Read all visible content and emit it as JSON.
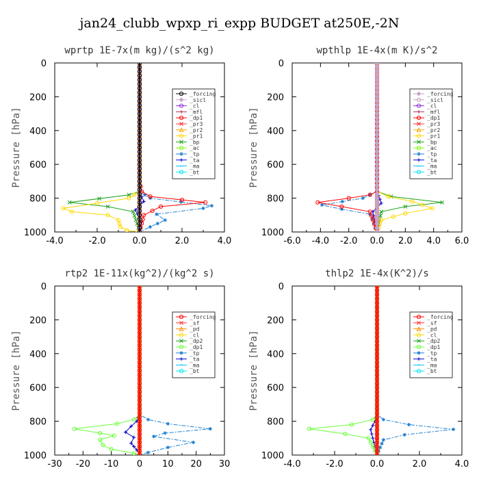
{
  "figure": {
    "title": "jan24_clubb_wpxp_ri_expp  BUDGET at250E,-2N"
  },
  "chart_data": [
    {
      "type": "line",
      "title": "wprtp  1E-7x(m kg)/(s^2 kg)",
      "ylabel": "Pressure [hPa]",
      "xlim": [
        -4,
        4
      ],
      "ylim": [
        1000,
        0
      ],
      "x_ticks": [
        "-4.0",
        "-2.0",
        "0.0",
        "2.0",
        "4.0"
      ],
      "x_tick_values": [
        -4,
        -2,
        0,
        2,
        4
      ],
      "y_ticks": [
        "0",
        "200",
        "400",
        "600",
        "800",
        "1000"
      ],
      "y_tick_values": [
        0,
        200,
        400,
        600,
        800,
        1000
      ],
      "legend_position": "top-right",
      "series": [
        {
          "name": "_forcing",
          "color": "#000000",
          "marker": "o",
          "x": [
            0,
            0,
            0,
            0,
            0,
            0,
            0,
            0,
            0,
            0,
            0,
            0
          ],
          "y": [
            0,
            100,
            200,
            300,
            400,
            500,
            600,
            700,
            800,
            850,
            900,
            1000
          ]
        },
        {
          "name": "_sicl",
          "color": "#c8a2c8",
          "marker": "d",
          "x": [
            0,
            0,
            0,
            0,
            0
          ],
          "y": [
            0,
            250,
            500,
            750,
            1000
          ]
        },
        {
          "name": "_cl",
          "color": "#8a2be2",
          "marker": "o",
          "x": [
            0,
            0,
            0,
            0,
            0
          ],
          "y": [
            0,
            250,
            500,
            750,
            1000
          ]
        },
        {
          "name": "_mfl",
          "color": "#b03060",
          "marker": "+",
          "x": [
            0,
            0,
            0,
            0,
            0
          ],
          "y": [
            0,
            250,
            500,
            750,
            1000
          ]
        },
        {
          "name": "_dp1",
          "color": "#ff0000",
          "marker": "o",
          "x": [
            0,
            0,
            0.1,
            0.5,
            2.0,
            3.1,
            1.0,
            0.2,
            0
          ],
          "y": [
            0,
            700,
            760,
            790,
            810,
            825,
            850,
            900,
            1000
          ]
        },
        {
          "name": "_pr3",
          "color": "#ff3030",
          "marker": "x",
          "x": [
            0,
            0,
            0
          ],
          "y": [
            0,
            500,
            1000
          ]
        },
        {
          "name": "_pr2",
          "color": "#ffa500",
          "marker": "^",
          "x": [
            0,
            0,
            0
          ],
          "y": [
            0,
            500,
            1000
          ]
        },
        {
          "name": "_pr1",
          "color": "#ffd700",
          "marker": "o",
          "x": [
            0,
            0,
            -0.5,
            -2.0,
            -3.6,
            -3.2,
            -1.5,
            -1.0,
            -0.9,
            -0.6,
            0
          ],
          "y": [
            0,
            760,
            800,
            830,
            860,
            880,
            900,
            930,
            970,
            990,
            1000
          ]
        },
        {
          "name": "_bp",
          "color": "#1aa01a",
          "marker": "x",
          "x": [
            0,
            0,
            -0.5,
            -3.3,
            -1.5,
            -0.3,
            0
          ],
          "y": [
            0,
            760,
            780,
            825,
            850,
            880,
            1000
          ]
        },
        {
          "name": "_ac",
          "color": "#7cfc00",
          "marker": "o",
          "x": [
            0,
            0,
            0
          ],
          "y": [
            0,
            500,
            1000
          ]
        },
        {
          "name": "_tp",
          "color": "#1e7fd0",
          "marker": "*",
          "x": [
            0,
            0,
            0.5,
            3.4,
            3.0,
            0.8,
            1.2,
            0.5,
            0
          ],
          "y": [
            0,
            760,
            800,
            845,
            860,
            895,
            930,
            970,
            1000
          ]
        },
        {
          "name": "_ta",
          "color": "#0000cd",
          "marker": "+",
          "x": [
            0,
            0,
            0.2,
            -0.2,
            0.1,
            0
          ],
          "y": [
            0,
            760,
            820,
            870,
            940,
            1000
          ]
        },
        {
          "name": "_ma",
          "color": "#00bfff",
          "marker": "-",
          "x": [
            0,
            0,
            0
          ],
          "y": [
            0,
            500,
            1000
          ]
        },
        {
          "name": "_bt",
          "color": "#00e5ee",
          "marker": "o",
          "x": [
            0,
            0,
            0
          ],
          "y": [
            0,
            500,
            1000
          ]
        }
      ]
    },
    {
      "type": "line",
      "title": "wpthlp  1E-4x(m K)/s^2",
      "ylabel": "Pressure [hPa]",
      "xlim": [
        -6,
        6
      ],
      "ylim": [
        1000,
        0
      ],
      "x_ticks": [
        "-6.0",
        "-4.0",
        "-2.0",
        "0.0",
        "2.0",
        "4.0",
        "6.0"
      ],
      "x_tick_values": [
        -6,
        -4,
        -2,
        0,
        2,
        4,
        6
      ],
      "y_ticks": [
        "0",
        "200",
        "400",
        "600",
        "800",
        "1000"
      ],
      "y_tick_values": [
        0,
        200,
        400,
        600,
        800,
        1000
      ],
      "legend_position": "top-right",
      "series": [
        {
          "name": "_forcing",
          "color": "#c8a2c8",
          "marker": "d",
          "x": [
            0,
            0,
            0,
            0,
            0
          ],
          "y": [
            0,
            250,
            500,
            750,
            1000
          ]
        },
        {
          "name": "_sicl",
          "color": "#c8a2c8",
          "marker": "o",
          "x": [
            0,
            0,
            0,
            0,
            0
          ],
          "y": [
            0,
            250,
            500,
            750,
            1000
          ]
        },
        {
          "name": "_cl",
          "color": "#8a2be2",
          "marker": "o",
          "x": [
            0,
            0,
            0,
            0,
            0
          ],
          "y": [
            0,
            250,
            500,
            750,
            1000
          ]
        },
        {
          "name": "_mfl",
          "color": "#b03060",
          "marker": "+",
          "x": [
            0,
            0,
            0,
            0,
            0
          ],
          "y": [
            0,
            250,
            500,
            750,
            1000
          ]
        },
        {
          "name": "_dp1",
          "color": "#ff0000",
          "marker": "o",
          "x": [
            0,
            0,
            -0.5,
            -2.0,
            -4.2,
            -2.5,
            -0.5,
            0
          ],
          "y": [
            0,
            760,
            780,
            800,
            825,
            850,
            880,
            1000
          ]
        },
        {
          "name": "_pr3",
          "color": "#ff3030",
          "marker": "x",
          "x": [
            0,
            0,
            0
          ],
          "y": [
            0,
            500,
            1000
          ]
        },
        {
          "name": "_pr2",
          "color": "#ffa500",
          "marker": "^",
          "x": [
            0,
            0,
            0
          ],
          "y": [
            0,
            500,
            1000
          ]
        },
        {
          "name": "_pr1",
          "color": "#ffd700",
          "marker": "o",
          "x": [
            0,
            0,
            0.8,
            2.5,
            3.9,
            2.0,
            0.3,
            0
          ],
          "y": [
            0,
            760,
            790,
            820,
            860,
            890,
            930,
            1000
          ]
        },
        {
          "name": "_bp",
          "color": "#1aa01a",
          "marker": "x",
          "x": [
            0,
            0,
            1.0,
            4.6,
            2.0,
            0.3,
            0
          ],
          "y": [
            0,
            760,
            790,
            825,
            850,
            880,
            1000
          ]
        },
        {
          "name": "_ac",
          "color": "#7cfc00",
          "marker": "o",
          "x": [
            0,
            0,
            0
          ],
          "y": [
            0,
            500,
            1000
          ]
        },
        {
          "name": "_tp",
          "color": "#1e7fd0",
          "marker": "*",
          "x": [
            0,
            0,
            -1.0,
            -3.9,
            -2.5,
            -0.5,
            -0.2,
            0
          ],
          "y": [
            0,
            760,
            800,
            840,
            865,
            895,
            950,
            1000
          ]
        },
        {
          "name": "_ta",
          "color": "#0000cd",
          "marker": "+",
          "x": [
            0,
            0,
            0.3,
            -0.3,
            0
          ],
          "y": [
            0,
            760,
            830,
            880,
            1000
          ]
        },
        {
          "name": "_ma",
          "color": "#00bfff",
          "marker": "-",
          "x": [
            0,
            0,
            0
          ],
          "y": [
            0,
            500,
            1000
          ]
        },
        {
          "name": "_bt",
          "color": "#00e5ee",
          "marker": "o",
          "x": [
            0,
            0,
            0
          ],
          "y": [
            0,
            500,
            1000
          ]
        }
      ]
    },
    {
      "type": "line",
      "title": "rtp2  1E-11x(kg^2)/(kg^2 s)",
      "ylabel": "Pressure [hPa]",
      "xlim": [
        -30,
        30
      ],
      "ylim": [
        1000,
        0
      ],
      "x_ticks": [
        "-30",
        "-20",
        "-10",
        "0",
        "10",
        "20",
        "30"
      ],
      "x_tick_values": [
        -30,
        -20,
        -10,
        0,
        10,
        20,
        30
      ],
      "y_ticks": [
        "0",
        "200",
        "400",
        "600",
        "800",
        "1000"
      ],
      "y_tick_values": [
        0,
        200,
        400,
        600,
        800,
        1000
      ],
      "legend_position": "top-right",
      "series": [
        {
          "name": "_forcing",
          "color": "#ff0000",
          "marker": "o",
          "x": [
            0,
            0,
            0,
            0,
            0,
            0,
            0,
            0,
            0,
            0,
            0,
            0
          ],
          "y": [
            0,
            100,
            200,
            300,
            400,
            500,
            600,
            700,
            800,
            850,
            900,
            1000
          ]
        },
        {
          "name": "_sf",
          "color": "#ff3030",
          "marker": "x",
          "x": [
            0,
            0,
            0
          ],
          "y": [
            0,
            500,
            1000
          ]
        },
        {
          "name": "_pd",
          "color": "#ff8c00",
          "marker": "^",
          "x": [
            0,
            0,
            0
          ],
          "y": [
            0,
            500,
            1000
          ]
        },
        {
          "name": "_cl",
          "color": "#ffd700",
          "marker": "o",
          "x": [
            0,
            0,
            0
          ],
          "y": [
            0,
            500,
            1000
          ]
        },
        {
          "name": "_dp2",
          "color": "#1aa01a",
          "marker": "x",
          "x": [
            0,
            0,
            0
          ],
          "y": [
            0,
            500,
            1000
          ]
        },
        {
          "name": "_dp1",
          "color": "#66ff33",
          "marker": "o",
          "x": [
            0,
            0,
            -2,
            -8,
            -23,
            -14,
            -9,
            -14,
            -13,
            -10,
            -2,
            0
          ],
          "y": [
            0,
            760,
            790,
            815,
            845,
            870,
            885,
            910,
            940,
            965,
            990,
            1000
          ]
        },
        {
          "name": "_tp",
          "color": "#1e7fd0",
          "marker": "*",
          "x": [
            0,
            0,
            3,
            10,
            25,
            9,
            5,
            19,
            10,
            3,
            0
          ],
          "y": [
            0,
            760,
            790,
            815,
            845,
            870,
            890,
            925,
            955,
            985,
            1000
          ]
        },
        {
          "name": "_ta",
          "color": "#0000cd",
          "marker": "+",
          "x": [
            0,
            0,
            -1,
            -3,
            -5,
            -2,
            -3,
            -1,
            0
          ],
          "y": [
            0,
            760,
            800,
            830,
            865,
            895,
            930,
            970,
            1000
          ]
        },
        {
          "name": "_ma",
          "color": "#00bfff",
          "marker": "-",
          "x": [
            0,
            0,
            0
          ],
          "y": [
            0,
            500,
            1000
          ]
        },
        {
          "name": "_bt",
          "color": "#00e5ee",
          "marker": "o",
          "x": [
            0,
            0,
            0
          ],
          "y": [
            0,
            500,
            1000
          ]
        }
      ]
    },
    {
      "type": "line",
      "title": "thlp2  1E-4x(K^2)/s",
      "ylabel": "Pressure [hPa]",
      "xlim": [
        -4,
        4
      ],
      "ylim": [
        1000,
        0
      ],
      "x_ticks": [
        "-4.0",
        "-2.0",
        "0.0",
        "2.0",
        "4.0"
      ],
      "x_tick_values": [
        -4,
        -2,
        0,
        2,
        4
      ],
      "y_ticks": [
        "0",
        "200",
        "400",
        "600",
        "800",
        "1000"
      ],
      "y_tick_values": [
        0,
        200,
        400,
        600,
        800,
        1000
      ],
      "legend_position": "top-right",
      "series": [
        {
          "name": "_forcing",
          "color": "#ff0000",
          "marker": "o",
          "x": [
            0,
            0,
            0,
            0,
            0,
            0,
            0,
            0,
            0,
            0,
            0,
            0
          ],
          "y": [
            0,
            100,
            200,
            300,
            400,
            500,
            600,
            700,
            800,
            850,
            900,
            1000
          ]
        },
        {
          "name": "_sf",
          "color": "#ff3030",
          "marker": "x",
          "x": [
            0,
            0,
            0
          ],
          "y": [
            0,
            500,
            1000
          ]
        },
        {
          "name": "_pd",
          "color": "#ff8c00",
          "marker": "^",
          "x": [
            0,
            0,
            0
          ],
          "y": [
            0,
            500,
            1000
          ]
        },
        {
          "name": "_cl",
          "color": "#ffd700",
          "marker": "o",
          "x": [
            0,
            0,
            0
          ],
          "y": [
            0,
            500,
            1000
          ]
        },
        {
          "name": "_dp2",
          "color": "#1aa01a",
          "marker": "x",
          "x": [
            0,
            0,
            0
          ],
          "y": [
            0,
            500,
            1000
          ]
        },
        {
          "name": "_dp1",
          "color": "#66ff33",
          "marker": "o",
          "x": [
            0,
            0,
            -0.2,
            -1.2,
            -3.2,
            -1.5,
            -0.4,
            0
          ],
          "y": [
            0,
            760,
            790,
            820,
            845,
            875,
            900,
            1000
          ]
        },
        {
          "name": "_tp",
          "color": "#1e7fd0",
          "marker": "*",
          "x": [
            0,
            0,
            0.3,
            1.5,
            3.6,
            1.3,
            0.3,
            0
          ],
          "y": [
            0,
            760,
            790,
            820,
            848,
            880,
            910,
            1000
          ]
        },
        {
          "name": "_ta",
          "color": "#0000cd",
          "marker": "+",
          "x": [
            0,
            0,
            -0.1,
            -0.3,
            -0.2,
            0
          ],
          "y": [
            0,
            760,
            800,
            850,
            900,
            1000
          ]
        },
        {
          "name": "_ma",
          "color": "#00bfff",
          "marker": "-",
          "x": [
            0,
            0,
            0
          ],
          "y": [
            0,
            500,
            1000
          ]
        },
        {
          "name": "_bt",
          "color": "#00e5ee",
          "marker": "o",
          "x": [
            0,
            0,
            0
          ],
          "y": [
            0,
            500,
            1000
          ]
        }
      ]
    }
  ]
}
